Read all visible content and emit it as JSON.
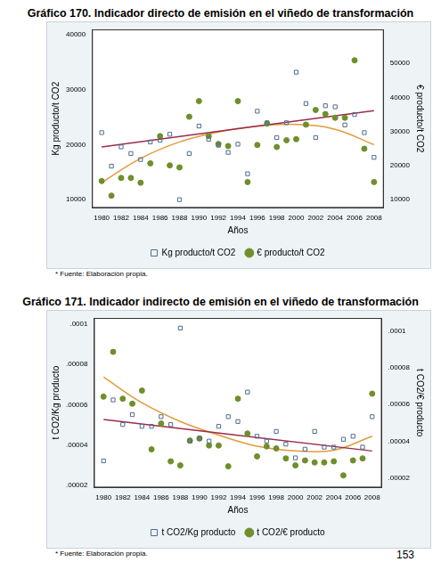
{
  "chart_data": [
    {
      "type": "scatter",
      "title": "Gráfico 170. Indicador directo de emisión en el viñedo de transformación",
      "x_label": "Años",
      "y_label": "Kg producto/t CO2",
      "y2_label": "€ producto/t CO2",
      "annotations": [
        "* Fuente: Elaboración propia."
      ],
      "x": [
        1980,
        1981,
        1982,
        1983,
        1984,
        1985,
        1986,
        1987,
        1988,
        1989,
        1990,
        1991,
        1992,
        1993,
        1994,
        1995,
        1996,
        1997,
        1998,
        1999,
        2000,
        2001,
        2002,
        2003,
        2004,
        2005,
        2006,
        2007,
        2008
      ],
      "xlim": [
        1979,
        2009
      ],
      "xticks": [
        1980,
        1982,
        1984,
        1986,
        1988,
        1990,
        1992,
        1994,
        1996,
        1998,
        2000,
        2002,
        2004,
        2006,
        2008
      ],
      "ylim": [
        8500,
        41000
      ],
      "yticks": [
        10000,
        20000,
        30000,
        40000
      ],
      "y2lim": [
        7500,
        60000
      ],
      "y2ticks": [
        10000,
        20000,
        30000,
        40000,
        50000
      ],
      "grid": false,
      "legend": "bottom",
      "series": [
        {
          "name": "Kg producto/t CO2",
          "color": "#4f6d8f",
          "marker": "square",
          "values": [
            22200,
            16100,
            19600,
            18400,
            17300,
            20500,
            20800,
            21900,
            10000,
            18400,
            23400,
            21000,
            19900,
            18600,
            20100,
            14700,
            26100,
            24000,
            21300,
            24000,
            33200,
            27500,
            21300,
            27100,
            26900,
            23600,
            25500,
            22200,
            17700
          ]
        },
        {
          "name": "€ producto/t CO2",
          "color": "#6f8f2a",
          "marker": "circle",
          "axis": "y2",
          "values": [
            15400,
            11100,
            16300,
            16300,
            14900,
            20600,
            28600,
            20000,
            19400,
            34300,
            38900,
            28600,
            26300,
            25700,
            38900,
            15100,
            26000,
            32300,
            25400,
            27400,
            27700,
            32000,
            36300,
            35100,
            34000,
            34000,
            50900,
            24900,
            15100
          ]
        },
        {
          "type": "line",
          "color": "#9b2d4a",
          "marker": "none",
          "line_style": "solid",
          "x": [
            1980,
            2008
          ],
          "values": [
            19600,
            26200
          ]
        },
        {
          "type": "line",
          "color": "#e39a3b",
          "marker": "none",
          "line_style": "solid",
          "x": [
            1980,
            1984,
            1988,
            1992,
            1996,
            2000,
            2004,
            2008
          ],
          "values": [
            13100,
            17500,
            20500,
            22300,
            23400,
            23700,
            22800,
            20000
          ]
        }
      ]
    },
    {
      "type": "scatter",
      "title": "Gráfico 171. Indicador indirecto de emisión en el viñedo de transformación",
      "x_label": "Años",
      "y_label": "t CO2/Kg producto",
      "y2_label": "t CO2/€ producto",
      "annotations": [
        "* Fuente: Elaboración propia."
      ],
      "x": [
        1980,
        1981,
        1982,
        1983,
        1984,
        1985,
        1986,
        1987,
        1988,
        1989,
        1990,
        1991,
        1992,
        1993,
        1994,
        1995,
        1996,
        1997,
        1998,
        1999,
        2000,
        2001,
        2002,
        2003,
        2004,
        2005,
        2006,
        2007,
        2008
      ],
      "xlim": [
        1979,
        2009
      ],
      "xticks": [
        1980,
        1982,
        1984,
        1986,
        1988,
        1990,
        1992,
        1994,
        1996,
        1998,
        2000,
        2002,
        2004,
        2006,
        2008
      ],
      "ylim": [
        1.9e-05,
        0.000103
      ],
      "yticks": [
        {
          "value": 2e-05,
          "label": ".00002"
        },
        {
          "value": 4e-05,
          "label": ".00004"
        },
        {
          "value": 6e-05,
          "label": ".00006"
        },
        {
          "value": 8e-05,
          "label": ".00008"
        },
        {
          "value": 0.0001,
          "label": ".0001"
        }
      ],
      "y2lim": [
        1.5e-05,
        0.000107
      ],
      "y2ticks": [
        {
          "value": 2e-05,
          "label": ".00002"
        },
        {
          "value": 4e-05,
          "label": ".00004"
        },
        {
          "value": 6e-05,
          "label": ".00006"
        },
        {
          "value": 8e-05,
          "label": ".00008"
        },
        {
          "value": 0.0001,
          "label": ".0001"
        }
      ],
      "grid": false,
      "legend": "bottom",
      "series": [
        {
          "name": "t CO2/Kg producto",
          "color": "#4f6d8f",
          "marker": "square",
          "values": [
            3.22e-05,
            6.24e-05,
            5.02e-05,
            5.51e-05,
            4.93e-05,
            4.93e-05,
            5.41e-05,
            5.02e-05,
            9.8e-05,
            4.2e-05,
            4.34e-05,
            4.2e-05,
            4.93e-05,
            5.41e-05,
            5.17e-05,
            6.63e-05,
            4.44e-05,
            4.2e-05,
            4.68e-05,
            4.05e-05,
            3.37e-05,
            3.8e-05,
            4.68e-05,
            3.9e-05,
            3.9e-05,
            4.29e-05,
            4.44e-05,
            3.9e-05,
            5.41e-05
          ]
        },
        {
          "name": "t CO2/€ producto",
          "color": "#6f8f2a",
          "marker": "circle",
          "axis": "y2",
          "values": [
            6.43e-05,
            8.86e-05,
            6.32e-05,
            6.05e-05,
            6.76e-05,
            3.57e-05,
            4.97e-05,
            2.92e-05,
            2.7e-05,
            4.05e-05,
            4.16e-05,
            3.78e-05,
            3.78e-05,
            2.65e-05,
            6.32e-05,
            4.43e-05,
            3.19e-05,
            3.73e-05,
            3.62e-05,
            3.08e-05,
            2.7e-05,
            2.97e-05,
            2.86e-05,
            2.86e-05,
            2.92e-05,
            2.16e-05,
            2.97e-05,
            3.08e-05,
            6.59e-05
          ]
        },
        {
          "type": "line",
          "color": "#9b2d4a",
          "marker": "none",
          "line_style": "solid",
          "x": [
            1980,
            2008
          ],
          "values": [
            5.27e-05,
            3.71e-05
          ]
        },
        {
          "type": "line",
          "color": "#e39a3b",
          "marker": "none",
          "line_style": "solid",
          "x": [
            1980,
            1984,
            1988,
            1992,
            1996,
            2000,
            2004,
            2008
          ],
          "values": [
            7.37e-05,
            6.1e-05,
            5.17e-05,
            4.5e-05,
            3.95e-05,
            3.72e-05,
            3.75e-05,
            4.44e-05
          ]
        }
      ]
    }
  ],
  "page": {
    "number": 153
  }
}
